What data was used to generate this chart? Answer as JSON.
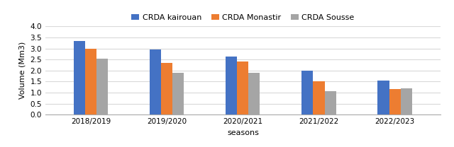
{
  "seasons": [
    "2018/2019",
    "2019/2020",
    "2020/2021",
    "2021/2022",
    "2022/2023"
  ],
  "series": {
    "CRDA kairouan": [
      3.35,
      2.95,
      2.65,
      2.0,
      1.55
    ],
    "CRDA Monastir": [
      3.0,
      2.35,
      2.4,
      1.5,
      1.15
    ],
    "CRDA Sousse": [
      2.55,
      1.9,
      1.9,
      1.05,
      1.2
    ]
  },
  "colors": {
    "CRDA kairouan": "#4472C4",
    "CRDA Monastir": "#ED7D31",
    "CRDA Sousse": "#A5A5A5"
  },
  "xlabel": "seasons",
  "ylabel": "Volume (Mm3)",
  "ylim": [
    0,
    4
  ],
  "yticks": [
    0,
    0.5,
    1.0,
    1.5,
    2.0,
    2.5,
    3.0,
    3.5,
    4.0
  ],
  "bar_width": 0.15,
  "legend_loc": "upper center",
  "legend_ncol": 3,
  "background_color": "#ffffff",
  "grid_color": "#d9d9d9",
  "axis_fontsize": 8,
  "tick_fontsize": 7.5,
  "legend_fontsize": 8
}
